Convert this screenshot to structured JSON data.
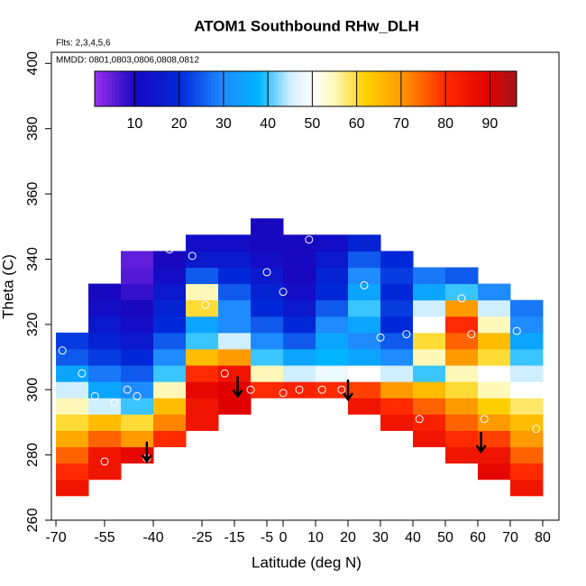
{
  "chart_data": {
    "type": "heatmap",
    "title": "ATOM1 Southbound RHw_DLH",
    "subtitle": "Flts: 2,3,4,5,6",
    "annotation": "MMDD: 0801,0803,0806,0808,0812",
    "x_label": "Latitude (deg N)",
    "y_label": "Theta (C)",
    "xlim": [
      -71.4,
      85
    ],
    "ylim": [
      260,
      403.4
    ],
    "xticks": [
      -70,
      -55,
      -40,
      -25,
      -15,
      -5,
      0,
      10,
      20,
      30,
      40,
      50,
      60,
      70,
      80
    ],
    "yticks": [
      260,
      280,
      300,
      320,
      340,
      360,
      380,
      400
    ],
    "x": [
      -65,
      -55,
      -45,
      -35,
      -25,
      -15,
      -5,
      5,
      15,
      25,
      35,
      45,
      55,
      65,
      75
    ],
    "y": [
      270,
      275,
      280,
      285,
      290,
      295,
      300,
      305,
      310,
      315,
      320,
      325,
      330,
      335,
      340,
      345,
      350
    ],
    "z": [
      [
        85,
        null,
        null,
        null,
        null,
        null,
        null,
        null,
        null,
        null,
        null,
        null,
        null,
        null,
        85
      ],
      [
        80,
        85,
        null,
        null,
        null,
        null,
        null,
        null,
        null,
        null,
        null,
        null,
        null,
        88,
        80
      ],
      [
        75,
        85,
        88,
        null,
        null,
        null,
        null,
        null,
        null,
        null,
        null,
        null,
        85,
        85,
        75
      ],
      [
        68,
        75,
        70,
        80,
        null,
        null,
        null,
        null,
        null,
        null,
        null,
        85,
        80,
        78,
        70
      ],
      [
        60,
        65,
        60,
        72,
        85,
        null,
        null,
        null,
        null,
        null,
        85,
        82,
        75,
        70,
        65
      ],
      [
        55,
        45,
        40,
        65,
        85,
        90,
        null,
        null,
        null,
        85,
        80,
        75,
        70,
        62,
        58
      ],
      [
        45,
        35,
        30,
        55,
        88,
        90,
        80,
        82,
        80,
        78,
        70,
        65,
        60,
        55,
        50
      ],
      [
        35,
        28,
        25,
        40,
        80,
        85,
        55,
        45,
        48,
        50,
        45,
        40,
        55,
        50,
        45
      ],
      [
        25,
        22,
        20,
        30,
        65,
        70,
        40,
        35,
        38,
        35,
        30,
        55,
        70,
        60,
        40
      ],
      [
        22,
        18,
        15,
        25,
        40,
        45,
        30,
        25,
        35,
        30,
        25,
        60,
        75,
        65,
        35
      ],
      [
        null,
        15,
        12,
        20,
        35,
        30,
        25,
        20,
        30,
        35,
        20,
        50,
        80,
        55,
        30
      ],
      [
        null,
        12,
        10,
        18,
        60,
        30,
        20,
        15,
        25,
        40,
        22,
        45,
        70,
        45,
        28
      ],
      [
        null,
        10,
        8,
        15,
        55,
        25,
        18,
        12,
        20,
        35,
        20,
        35,
        40,
        30,
        null
      ],
      [
        null,
        null,
        6,
        12,
        25,
        20,
        15,
        10,
        18,
        30,
        22,
        28,
        25,
        null,
        null
      ],
      [
        null,
        null,
        5,
        10,
        15,
        15,
        12,
        10,
        15,
        25,
        20,
        null,
        null,
        null,
        null
      ],
      [
        null,
        null,
        null,
        null,
        12,
        12,
        10,
        10,
        12,
        18,
        null,
        null,
        null,
        null,
        null
      ],
      [
        null,
        null,
        null,
        null,
        null,
        null,
        10,
        null,
        null,
        null,
        null,
        null,
        null,
        null,
        null
      ]
    ],
    "zlim": [
      1,
      96
    ],
    "colorbar_ticks": [
      10,
      20,
      30,
      40,
      50,
      60,
      70,
      80,
      90
    ],
    "colorscale": [
      [
        1,
        "#9a30f0"
      ],
      [
        10,
        "#1808c0"
      ],
      [
        20,
        "#0028d8"
      ],
      [
        30,
        "#1e8cff"
      ],
      [
        38,
        "#00b4ff"
      ],
      [
        45,
        "#cfefff"
      ],
      [
        50,
        "#ffffff"
      ],
      [
        55,
        "#fff8b8"
      ],
      [
        62,
        "#ffd000"
      ],
      [
        70,
        "#ff9a00"
      ],
      [
        80,
        "#ff2a00"
      ],
      [
        90,
        "#e00000"
      ],
      [
        96,
        "#a01818"
      ]
    ],
    "points": {
      "x": [
        -68,
        -62,
        -58,
        -55,
        -52,
        -48,
        -45,
        -42,
        -35,
        -28,
        -24,
        -18,
        -10,
        -5,
        0,
        0,
        5,
        8,
        12,
        18,
        25,
        30,
        38,
        42,
        48,
        55,
        58,
        62,
        72,
        78
      ],
      "y": [
        312,
        305,
        298,
        278,
        296,
        300,
        298,
        279,
        343,
        341,
        326,
        305,
        300,
        336,
        330,
        299,
        300,
        346,
        300,
        300,
        332,
        316,
        317,
        291,
        320,
        328,
        317,
        291,
        318,
        288
      ]
    },
    "arrows": {
      "x": [
        -42,
        -14,
        20,
        61
      ],
      "y": [
        278,
        298,
        297,
        281
      ]
    }
  }
}
